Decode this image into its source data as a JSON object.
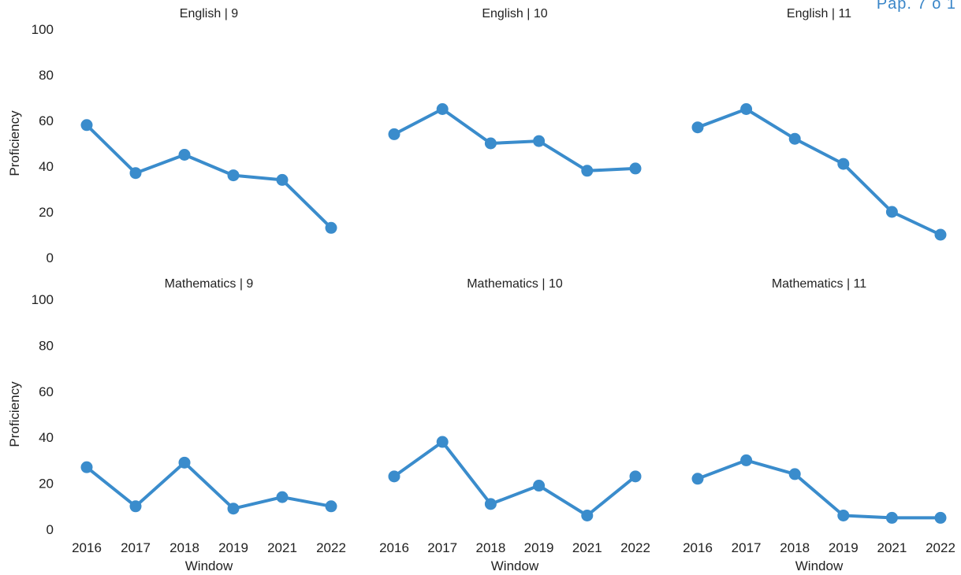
{
  "corner_text": "Pap. 7 o 1",
  "colors": {
    "series": "#3a8ccc",
    "text": "#222222"
  },
  "chart_data": {
    "type": "line",
    "layout": "facet-grid-2x3",
    "xlabel": "Window",
    "ylabel": "Proficiency",
    "ylim": [
      0,
      100
    ],
    "yticks": [
      0,
      20,
      40,
      60,
      80,
      100
    ],
    "categories": [
      "2016",
      "2017",
      "2018",
      "2019",
      "2021",
      "2022"
    ],
    "grid": false,
    "panels": [
      {
        "title": "English | 9",
        "values": [
          58,
          37,
          45,
          36,
          34,
          13
        ]
      },
      {
        "title": "English | 10",
        "values": [
          54,
          65,
          50,
          51,
          38,
          39
        ]
      },
      {
        "title": "English | 11",
        "values": [
          57,
          65,
          52,
          41,
          20,
          10
        ]
      },
      {
        "title": "Mathematics | 9",
        "values": [
          27,
          10,
          29,
          9,
          14,
          10
        ]
      },
      {
        "title": "Mathematics | 10",
        "values": [
          23,
          38,
          11,
          19,
          6,
          23
        ]
      },
      {
        "title": "Mathematics | 11",
        "values": [
          22,
          30,
          24,
          6,
          5,
          5
        ]
      }
    ]
  }
}
